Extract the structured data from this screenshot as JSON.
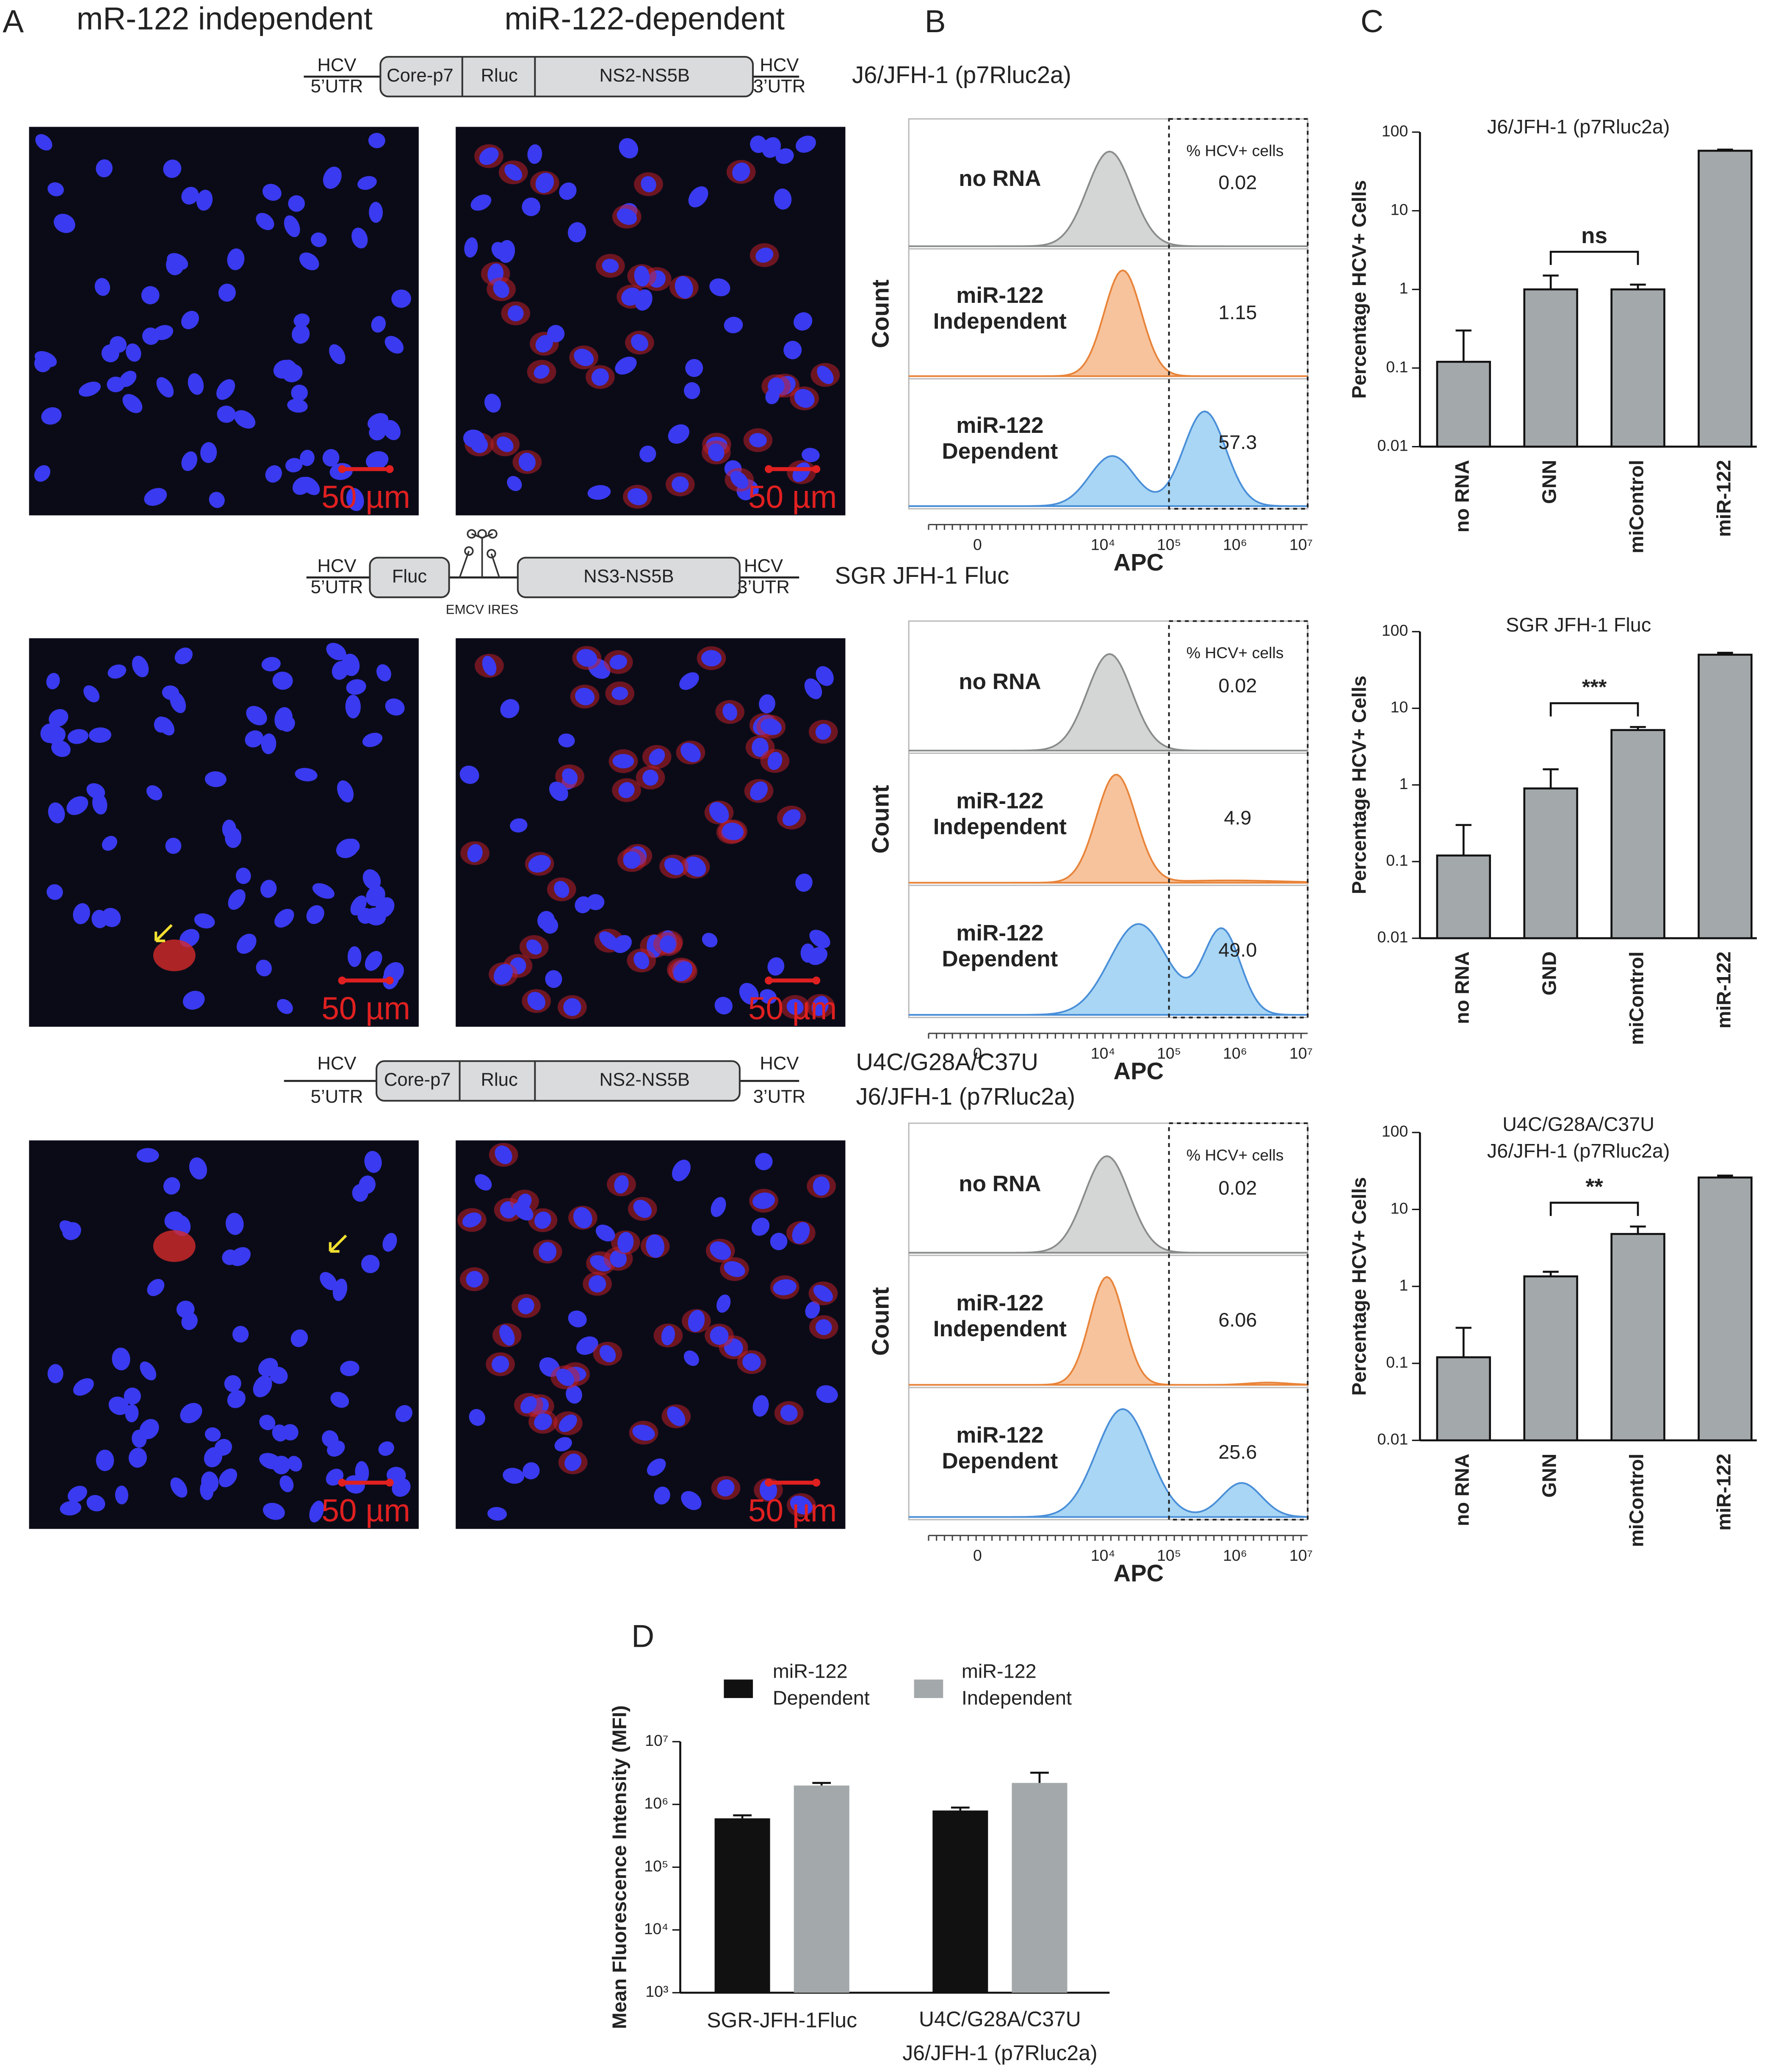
{
  "panel_labels": [
    "A",
    "B",
    "C",
    "D"
  ],
  "panel_a": {
    "columns": [
      "mR-122 independent",
      "miR-122-dependent"
    ],
    "scale_bar": "50 µm",
    "constructs": [
      {
        "utr5": "HCV\n5’UTR",
        "segments": [
          "Core-p7",
          "Rluc",
          "NS2-NS5B"
        ],
        "utr3": "HCV\n3’UTR",
        "name": "J6/JFH-1 (p7Rluc2a)"
      },
      {
        "utr5": "HCV\n5’UTR",
        "segments": [
          "Fluc",
          "EMCV IRES",
          "NS3-NS5B"
        ],
        "utr3": "HCV\n3’UTR",
        "name": "SGR JFH-1 Fluc"
      },
      {
        "utr5": "HCV\n5’UTR",
        "segments": [
          "Core-p7",
          "Rluc",
          "NS2-NS5B"
        ],
        "utr3": "HCV\n3’UTR",
        "name": "U4C/G28A/C37U\nJ6/JFH-1 (p7Rluc2a)"
      }
    ]
  },
  "panel_b": {
    "header": "% HCV+ cells",
    "y_label": "Count",
    "x_label": "APC",
    "x_ticks": [
      "0",
      "10⁴",
      "10⁵",
      "10⁶",
      "10⁷"
    ],
    "plots": [
      {
        "rows": [
          {
            "label": "no RNA",
            "value": "0.02"
          },
          {
            "label": "miR-122\nIndependent",
            "value": "1.15"
          },
          {
            "label": "miR-122\nDependent",
            "value": "57.3"
          }
        ]
      },
      {
        "rows": [
          {
            "label": "no RNA",
            "value": "0.02"
          },
          {
            "label": "miR-122\nIndependent",
            "value": "4.9"
          },
          {
            "label": "miR-122\nDependent",
            "value": "49.0"
          }
        ]
      },
      {
        "rows": [
          {
            "label": "no RNA",
            "value": "0.02"
          },
          {
            "label": "miR-122\nIndependent",
            "value": "6.06"
          },
          {
            "label": "miR-122\nDependent",
            "value": "25.6"
          }
        ]
      }
    ]
  },
  "chart_data": [
    {
      "type": "bar",
      "title": "J6/JFH-1 (p7Rluc2a)",
      "ylabel": "Percentage HCV+ Cells",
      "categories": [
        "no RNA",
        "GNN",
        "miControl",
        "miR-122"
      ],
      "values": [
        0.12,
        1.0,
        1.0,
        58
      ],
      "errors": [
        0.18,
        0.5,
        0.15,
        2
      ],
      "color": "#a3a8ab",
      "log_scale": true,
      "ylim": [
        0.01,
        100
      ],
      "yticks": [
        0.01,
        0.1,
        1,
        10,
        100
      ],
      "annotation": "ns"
    },
    {
      "type": "bar",
      "title": "SGR JFH-1 Fluc",
      "ylabel": "Percentage HCV+ Cells",
      "categories": [
        "no RNA",
        "GND",
        "miControl",
        "miR-122"
      ],
      "values": [
        0.12,
        0.9,
        5.2,
        50
      ],
      "errors": [
        0.18,
        0.7,
        0.5,
        3
      ],
      "color": "#a3a8ab",
      "log_scale": true,
      "ylim": [
        0.01,
        100
      ],
      "yticks": [
        0.01,
        0.1,
        1,
        10,
        100
      ],
      "annotation": "***"
    },
    {
      "type": "bar",
      "title": "U4C/G28A/C37U\nJ6/JFH-1 (p7Rluc2a)",
      "ylabel": "Percentage HCV+ Cells",
      "categories": [
        "no RNA",
        "GNN",
        "miControl",
        "miR-122"
      ],
      "values": [
        0.12,
        1.35,
        4.8,
        26
      ],
      "errors": [
        0.17,
        0.2,
        1.2,
        1.5
      ],
      "color": "#a3a8ab",
      "log_scale": true,
      "ylim": [
        0.01,
        100
      ],
      "yticks": [
        0.01,
        0.1,
        1,
        10,
        100
      ],
      "annotation": "**"
    },
    {
      "type": "grouped_bar",
      "ylabel": "Mean Fluorescence Intensity (MFI)",
      "categories": [
        "SGR-JFH-1Fluc",
        "U4C/G28A/C37U\nJ6/JFH-1 (p7Rluc2a)"
      ],
      "series": [
        {
          "name": "miR-122\nDependent",
          "color": "#111111",
          "values": [
            600000,
            800000
          ],
          "errors": [
            70000,
            90000
          ]
        },
        {
          "name": "miR-122\nIndependent",
          "color": "#a3a8ab",
          "values": [
            2000000,
            2200000
          ],
          "errors": [
            200000,
            1000000
          ]
        }
      ],
      "log_scale": true,
      "ylim": [
        1000,
        10000000
      ],
      "yticks": [
        {
          "value": 1000,
          "label": "10³"
        },
        {
          "value": 10000,
          "label": "10⁴"
        },
        {
          "value": 100000,
          "label": "10⁵"
        },
        {
          "value": 1000000,
          "label": "10⁶"
        },
        {
          "value": 10000000,
          "label": "10⁷"
        }
      ]
    }
  ]
}
